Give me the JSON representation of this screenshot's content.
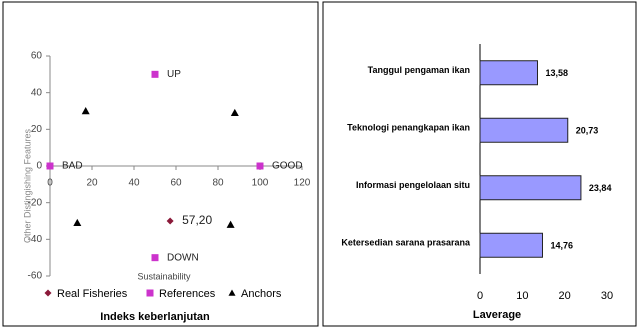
{
  "chart_data": [
    {
      "type": "scatter",
      "title": "Indeks keberlanjutan",
      "x_label": "Sustainability",
      "y_label": "Other Distingishing Features",
      "xlim": [
        0,
        120
      ],
      "xticks": [
        0,
        20,
        40,
        60,
        80,
        100,
        120
      ],
      "ylim": [
        -60,
        60
      ],
      "yticks": [
        -60,
        -40,
        -20,
        0,
        20,
        40,
        60
      ],
      "series": [
        {
          "name": "Real Fisheries",
          "color": "#8b1a3a",
          "marker": "diamond",
          "x": [
            57.2
          ],
          "values": [
            -30
          ],
          "value_labels": [
            "57,20"
          ]
        },
        {
          "name": "References",
          "color": "#cc33cc",
          "marker": "square",
          "x": [
            50,
            0,
            100,
            50
          ],
          "values": [
            50,
            0,
            0,
            -50
          ],
          "labels": [
            "UP",
            "BAD",
            "GOOD",
            "DOWN"
          ]
        },
        {
          "name": "Anchors",
          "color": "#000000",
          "marker": "triangle",
          "x": [
            17,
            88,
            13,
            86
          ],
          "values": [
            30,
            29,
            -31,
            -32
          ]
        }
      ]
    },
    {
      "type": "hbar",
      "x_label": "Laverage",
      "color": "#9999ff",
      "categories": [
        "Tanggul pengaman ikan",
        "Teknologi penangkapan ikan",
        "Informasi pengelolaan situ",
        "Ketersedian sarana prasarana"
      ],
      "values": [
        13.58,
        20.73,
        23.84,
        14.76
      ],
      "value_labels": [
        "13,58",
        "20,73",
        "23,84",
        "14,76"
      ],
      "xlim": [
        0,
        30
      ],
      "xticks": [
        0,
        10,
        20,
        30
      ]
    }
  ]
}
